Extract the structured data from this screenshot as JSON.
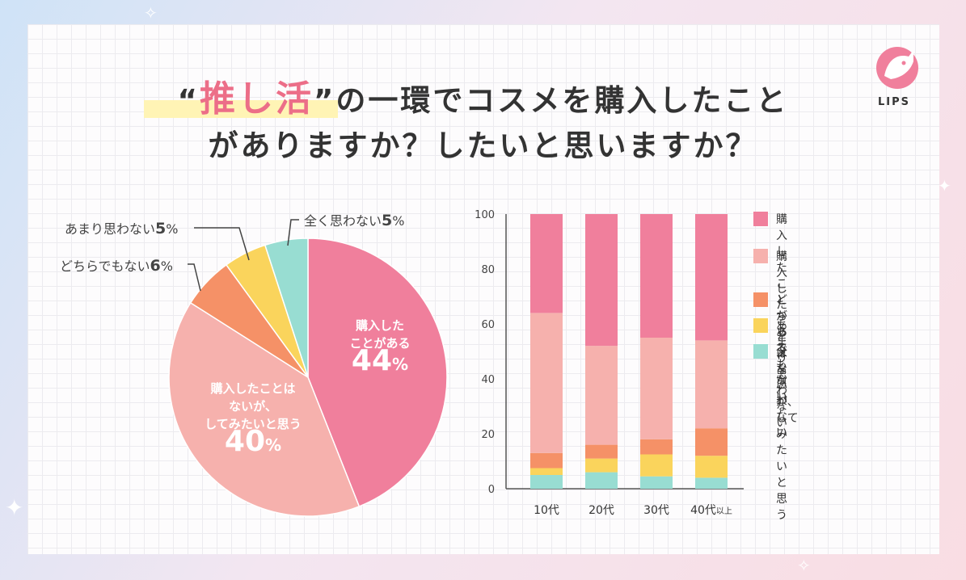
{
  "title": {
    "open_quote": "“",
    "highlight": "推し活",
    "close_quote": "”",
    "line1_rest": "の一環でコスメを購入したこと",
    "line2": "がありますか？したいと思いますか？"
  },
  "logo": {
    "text": "LIPS"
  },
  "colors": {
    "purchased": "#f07f9c",
    "want": "#f6b1ad",
    "neither": "#f59167",
    "not_much": "#fad45c",
    "not_at_all": "#98ddd2"
  },
  "pie_labels": {
    "purchased": {
      "name_line1": "購入した",
      "name_line2": "ことがある",
      "pct": "44",
      "unit": "%"
    },
    "want": {
      "name_line1": "購入したことは",
      "name_line2": "ないが、",
      "name_line3": "してみたいと思う",
      "pct": "40",
      "unit": "%"
    },
    "neither": {
      "name": "どちらでもない",
      "pct": "6",
      "unit": "%"
    },
    "not_much": {
      "name": "あまり思わない",
      "pct": "5",
      "unit": "%"
    },
    "not_at_all": {
      "name": "全く思わない",
      "pct": "5",
      "unit": "%"
    }
  },
  "legend": [
    {
      "key": "purchased",
      "label": "購入したことがある"
    },
    {
      "key": "want",
      "label": "購入したことはないが、\nしてみたいと思う"
    },
    {
      "key": "neither",
      "label": "どちらでもない"
    },
    {
      "key": "not_much",
      "label": "あまり思わない"
    },
    {
      "key": "not_at_all",
      "label": "全く思わない"
    }
  ],
  "chart_data": [
    {
      "type": "pie",
      "title": "“推し活”の一環でコスメを購入したことがありますか？したいと思いますか？",
      "slices": [
        {
          "key": "purchased",
          "label": "購入したことがある",
          "value": 44
        },
        {
          "key": "want",
          "label": "購入したことはないが、してみたいと思う",
          "value": 40
        },
        {
          "key": "neither",
          "label": "どちらでもない",
          "value": 6
        },
        {
          "key": "not_much",
          "label": "あまり思わない",
          "value": 5
        },
        {
          "key": "not_at_all",
          "label": "全く思わない",
          "value": 5
        }
      ]
    },
    {
      "type": "bar",
      "stacked": true,
      "categories": [
        "10代",
        "20代",
        "30代",
        "40代以上"
      ],
      "category_display": [
        {
          "main": "10代",
          "suffix": ""
        },
        {
          "main": "20代",
          "suffix": ""
        },
        {
          "main": "30代",
          "suffix": ""
        },
        {
          "main": "40代",
          "suffix": "以上"
        }
      ],
      "ylim": [
        0,
        100
      ],
      "yticks": [
        0,
        20,
        40,
        60,
        80,
        100
      ],
      "series": [
        {
          "key": "not_at_all",
          "name": "全く思わない",
          "values": [
            5,
            6,
            4.5,
            4
          ]
        },
        {
          "key": "not_much",
          "name": "あまり思わない",
          "values": [
            2.5,
            5,
            8,
            8
          ]
        },
        {
          "key": "neither",
          "name": "どちらでもない",
          "values": [
            5.5,
            5,
            5.5,
            10
          ]
        },
        {
          "key": "want",
          "name": "購入したことはないが、してみたいと思う",
          "values": [
            51,
            36,
            37,
            32
          ]
        },
        {
          "key": "purchased",
          "name": "購入したことがある",
          "values": [
            36,
            48,
            45,
            46
          ]
        }
      ]
    }
  ]
}
